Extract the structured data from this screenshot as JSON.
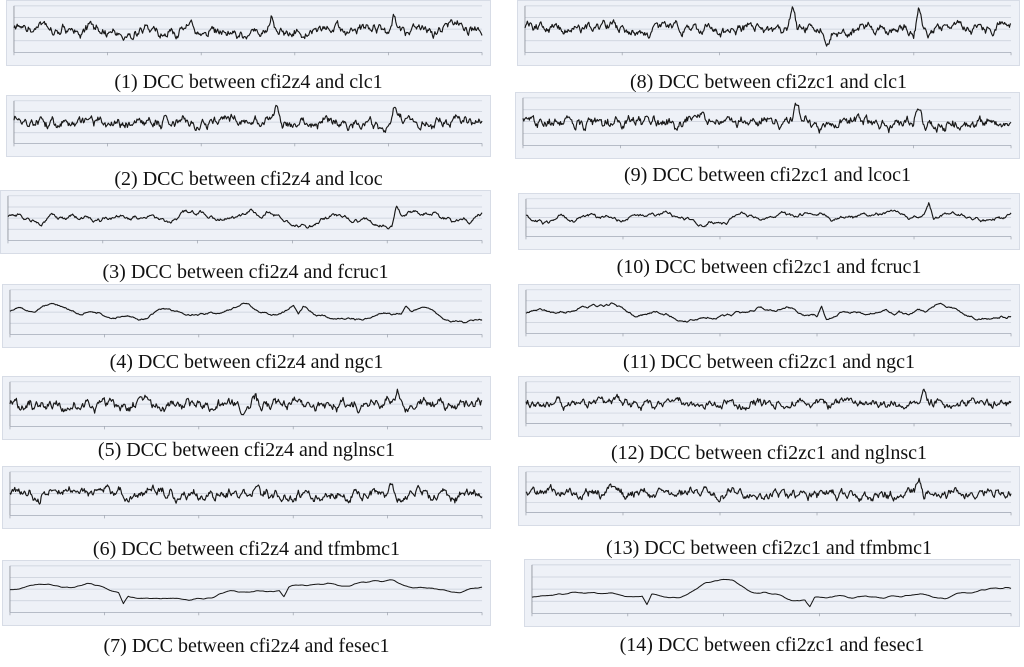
{
  "chart_data": [
    {
      "type": "line",
      "caption": "(1) DCC between cfi2z4 and clc1",
      "profile": "sharp",
      "volatility": 0.62,
      "seed": 11,
      "spikes": [
        {
          "at": 0.55,
          "depth": 0.95
        },
        {
          "at": 0.81,
          "depth": 1.0
        },
        {
          "at": 0.62,
          "depth": -0.35
        }
      ]
    },
    {
      "type": "line",
      "caption": "(2) DCC between cfi2z4 and lcoc",
      "profile": "dense",
      "volatility": 0.72,
      "seed": 12,
      "spikes": [
        {
          "at": 0.56,
          "depth": 0.85
        },
        {
          "at": 0.81,
          "depth": 0.82
        }
      ]
    },
    {
      "type": "line",
      "caption": "(3) DCC between cfi2z4 and fcruc1",
      "profile": "wavy",
      "volatility": 0.58,
      "seed": 13,
      "spikes": [
        {
          "at": 0.82,
          "depth": 0.85
        }
      ]
    },
    {
      "type": "line",
      "caption": "(4) DCC between cfi2z4 and ngc1",
      "profile": "calm",
      "volatility": 0.35,
      "seed": 14,
      "spikes": [
        {
          "at": 0.61,
          "depth": -0.5
        },
        {
          "at": 0.84,
          "depth": 0.28
        }
      ]
    },
    {
      "type": "line",
      "caption": "(5) DCC between cfi2z4 and nglnsc1",
      "profile": "dense",
      "volatility": 0.86,
      "seed": 15,
      "spikes": [
        {
          "at": 0.52,
          "depth": 0.55
        },
        {
          "at": 0.82,
          "depth": 0.65
        }
      ]
    },
    {
      "type": "line",
      "caption": "(6) DCC between cfi2z4 and tfmbmc1",
      "profile": "dense",
      "volatility": 1.0,
      "seed": 16,
      "spikes": [
        {
          "at": 0.81,
          "depth": 0.8
        }
      ]
    },
    {
      "type": "line",
      "caption": "(7) DCC between cfi2z4 and fesec1",
      "profile": "smooth",
      "volatility": 0.28,
      "seed": 17,
      "spikes": [
        {
          "at": 0.24,
          "depth": -0.45
        },
        {
          "at": 0.58,
          "depth": -0.35
        }
      ]
    },
    {
      "type": "line",
      "caption": "(8) DCC between cfi2zc1 and clc1",
      "profile": "sharp",
      "volatility": 0.62,
      "seed": 18,
      "spikes": [
        {
          "at": 0.55,
          "depth": 0.95
        },
        {
          "at": 0.81,
          "depth": 1.0
        },
        {
          "at": 0.62,
          "depth": -0.35
        }
      ]
    },
    {
      "type": "line",
      "caption": "(9) DCC between cfi2zc1 and lcoc1",
      "profile": "dense",
      "volatility": 0.75,
      "seed": 19,
      "spikes": [
        {
          "at": 0.56,
          "depth": 0.85
        },
        {
          "at": 0.81,
          "depth": 0.82
        }
      ]
    },
    {
      "type": "line",
      "caption": "(10) DCC between cfi2zc1 and fcruc1",
      "profile": "wavy",
      "volatility": 0.58,
      "seed": 20,
      "spikes": [
        {
          "at": 0.83,
          "depth": 0.85
        }
      ]
    },
    {
      "type": "line",
      "caption": "(11) DCC between cfi2zc1 and ngc1",
      "profile": "calm",
      "volatility": 0.35,
      "seed": 21,
      "spikes": [
        {
          "at": 0.61,
          "depth": 0.6
        },
        {
          "at": 0.77,
          "depth": 0.25
        }
      ]
    },
    {
      "type": "line",
      "caption": "(12) DCC between cfi2zc1 and nglnsc1",
      "profile": "dense",
      "volatility": 0.88,
      "seed": 22,
      "spikes": [
        {
          "at": 0.52,
          "depth": 0.55
        },
        {
          "at": 0.82,
          "depth": 0.65
        }
      ]
    },
    {
      "type": "line",
      "caption": "(13) DCC between cfi2zc1 and tfmbmc1",
      "profile": "dense",
      "volatility": 1.0,
      "seed": 23,
      "spikes": [
        {
          "at": 0.81,
          "depth": 0.8
        }
      ]
    },
    {
      "type": "line",
      "caption": "(14) DCC between cfi2zc1 and fesec1",
      "profile": "smooth",
      "volatility": 0.28,
      "seed": 24,
      "spikes": [
        {
          "at": 0.24,
          "depth": -0.45
        },
        {
          "at": 0.58,
          "depth": -0.35
        }
      ]
    }
  ]
}
